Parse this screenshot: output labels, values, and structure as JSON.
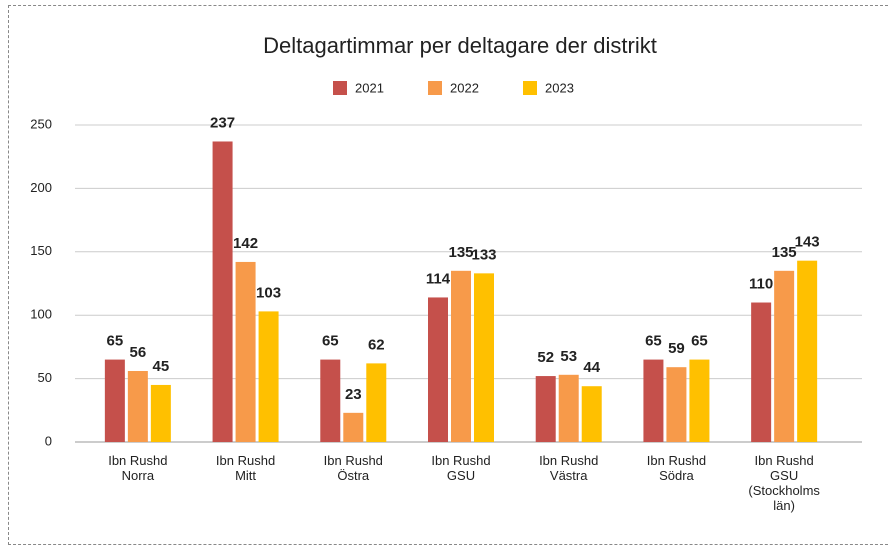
{
  "chart_data": {
    "type": "bar",
    "title": "Deltagartimmar per deltagare der distrikt",
    "categories": [
      "Ibn Rushd\nNorra",
      "Ibn Rushd\nMitt",
      "Ibn Rushd\nÖstra",
      "Ibn Rushd\nGSU",
      "Ibn Rushd\nVästra",
      "Ibn Rushd\nSödra",
      "Ibn Rushd\nGSU\n(Stockholms\nlän)"
    ],
    "series": [
      {
        "name": "2021",
        "color": "#c5504b",
        "values": [
          65,
          237,
          65,
          114,
          52,
          65,
          110
        ]
      },
      {
        "name": "2022",
        "color": "#f79a4a",
        "values": [
          56,
          142,
          23,
          135,
          53,
          59,
          135
        ]
      },
      {
        "name": "2023",
        "color": "#ffc000",
        "values": [
          45,
          103,
          62,
          133,
          44,
          65,
          143
        ]
      }
    ],
    "ylim": [
      0,
      250
    ],
    "yticks": [
      0,
      50,
      100,
      150,
      200,
      250
    ],
    "grid": true,
    "legend": "top"
  }
}
